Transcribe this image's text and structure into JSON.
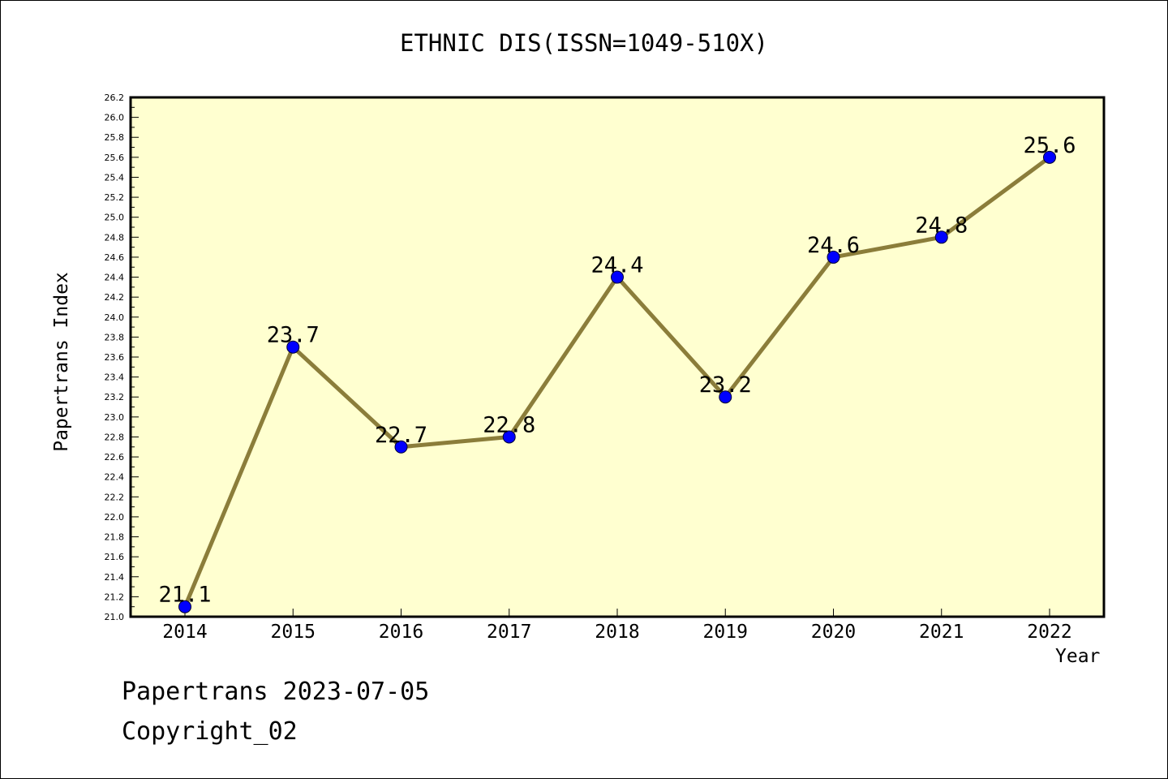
{
  "chart_data": {
    "type": "line",
    "title": "ETHNIC DIS(ISSN=1049-510X)",
    "xlabel": "Year",
    "ylabel": "Papertrans Index",
    "categories": [
      "2014",
      "2015",
      "2016",
      "2017",
      "2018",
      "2019",
      "2020",
      "2021",
      "2022"
    ],
    "series": [
      {
        "values": [
          21.1,
          23.7,
          22.7,
          22.8,
          24.4,
          23.2,
          24.6,
          24.8,
          25.6
        ]
      }
    ],
    "data_labels": [
      "21.1",
      "23.7",
      "22.7",
      "22.8",
      "24.4",
      "23.2",
      "24.6",
      "24.8",
      "25.6"
    ],
    "ylim": [
      21.0,
      26.2
    ],
    "y_ticks": [
      "21.0",
      "21.2",
      "21.4",
      "21.6",
      "21.8",
      "22.0",
      "22.2",
      "22.4",
      "22.6",
      "22.8",
      "23.0",
      "23.2",
      "23.4",
      "23.6",
      "23.8",
      "24.0",
      "24.2",
      "24.4",
      "24.6",
      "24.8",
      "25.0",
      "25.2",
      "25.4",
      "25.6",
      "25.8",
      "26.0",
      "26.2"
    ],
    "grid": false,
    "colors": {
      "plot_bg": "#ffffd0",
      "line": "#8b7d3a",
      "marker": "#0000ff"
    }
  },
  "footer": {
    "date": "Papertrans 2023-07-05",
    "copyright": "Copyright_02"
  }
}
